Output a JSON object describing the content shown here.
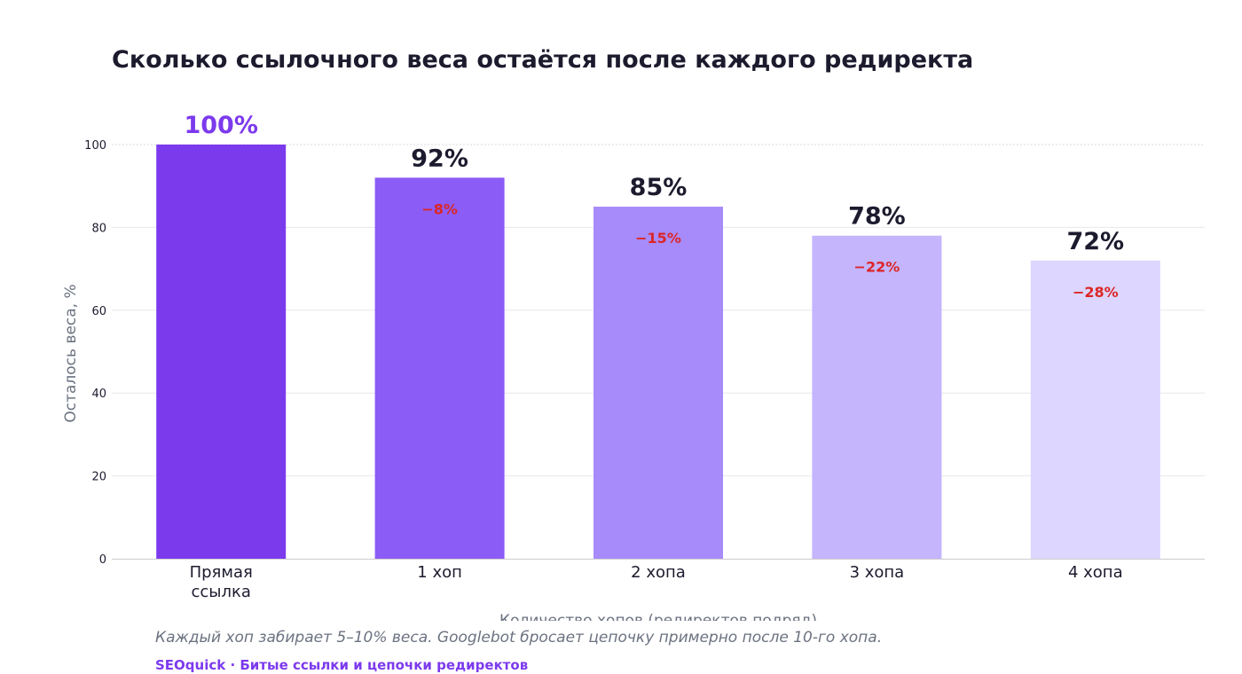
{
  "chart_data": {
    "type": "bar",
    "title": "Сколько ссылочного веса остаётся после каждого редиректа",
    "xlabel": "Количество хопов (редиректов подряд)",
    "ylabel": "Осталось веса, %",
    "ylim": [
      0,
      100
    ],
    "yticks": [
      "0",
      "20",
      "40",
      "60",
      "80",
      "100"
    ],
    "categories": [
      "Прямая\nссылка",
      "1 хоп",
      "2 хопа",
      "3 хопа",
      "4 хопа"
    ],
    "values": [
      100,
      92,
      85,
      78,
      72
    ],
    "value_labels": [
      "100%",
      "92%",
      "85%",
      "78%",
      "72%"
    ],
    "loss_labels": [
      "",
      "−8%",
      "−15%",
      "−22%",
      "−28%"
    ],
    "bar_colors": [
      "#7c3aed",
      "#8b5cf6",
      "#a78bfa",
      "#c4b5fd",
      "#ddd6fe"
    ],
    "first_value_label_color": "#7c3aed",
    "value_label_color": "#1c1b2e",
    "loss_label_color": "#dc2626",
    "grid": true,
    "legend": "none"
  },
  "footer": {
    "note": "Каждый хоп забирает 5–10% веса. Googlebot бросает цепочку примерно после 10-го хопа.",
    "credit": "SEOquick · Битые ссылки и цепочки редиректов"
  }
}
